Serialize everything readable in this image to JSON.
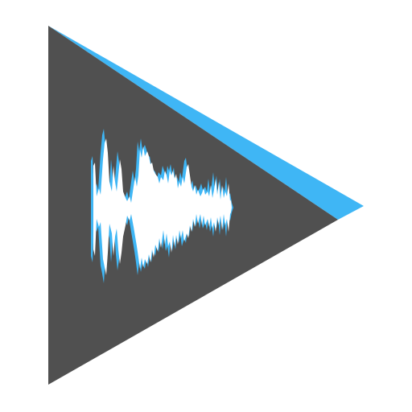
{
  "icon": {
    "name": "play-waveform-icon",
    "colors": {
      "background": "#ffffff",
      "triangle": "#505050",
      "accent": "#3fb6f5",
      "waveform_fill": "#ffffff",
      "waveform_outline": "#3fb6f5"
    }
  }
}
